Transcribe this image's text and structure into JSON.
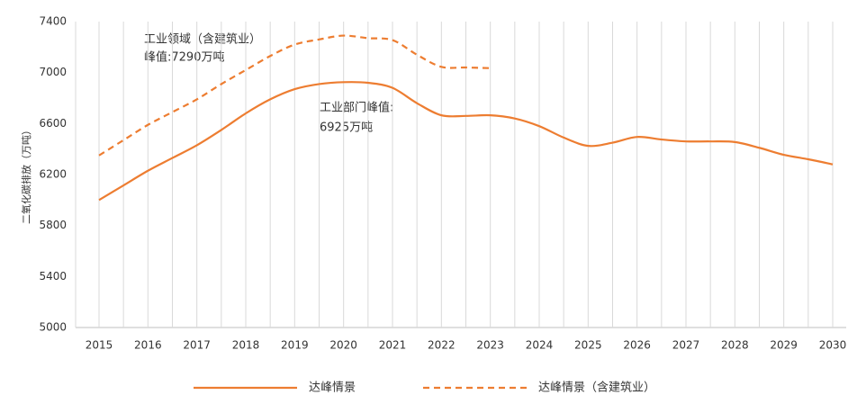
{
  "chart_data": {
    "type": "line",
    "y_label": "二氧化碳排放（万吨）",
    "categories": [
      "2015",
      null,
      "2016",
      null,
      "2017",
      null,
      "2018",
      null,
      "2019",
      null,
      "2020",
      null,
      "2021",
      null,
      "2022",
      null,
      "2023",
      null,
      "2024",
      null,
      "2025",
      null,
      "2026",
      null,
      "2027",
      null,
      "2028",
      null,
      "2029",
      null,
      "2030"
    ],
    "series": [
      {
        "name": "达峰情景",
        "color": "#ed7d31",
        "dashed": false,
        "values": [
          6000,
          6115,
          6230,
          6330,
          6430,
          6550,
          6680,
          6790,
          6870,
          6910,
          6925,
          6920,
          6880,
          6760,
          6665,
          6660,
          6665,
          6640,
          6580,
          6490,
          6425,
          6450,
          6495,
          6475,
          6460,
          6460,
          6455,
          6410,
          6355,
          6320,
          6280
        ]
      },
      {
        "name": "达峰情景（含建筑业）",
        "color": "#ed7d31",
        "dashed": true,
        "values": [
          6350,
          6470,
          6590,
          6690,
          6790,
          6910,
          7020,
          7130,
          7220,
          7260,
          7290,
          7270,
          7255,
          7140,
          7045,
          7040,
          7035,
          null,
          null,
          null,
          null,
          null,
          null,
          null,
          null,
          null,
          null,
          null,
          null,
          null,
          null
        ]
      }
    ],
    "annotations": [
      "工业领域（含建筑业）",
      "峰值:7290万吨",
      "工业部门峰值:",
      "6925万吨"
    ],
    "ylim": [
      5000,
      7400
    ],
    "yticks": [
      5000,
      5400,
      5800,
      6200,
      6600,
      7000,
      7400
    ],
    "grid": true
  }
}
